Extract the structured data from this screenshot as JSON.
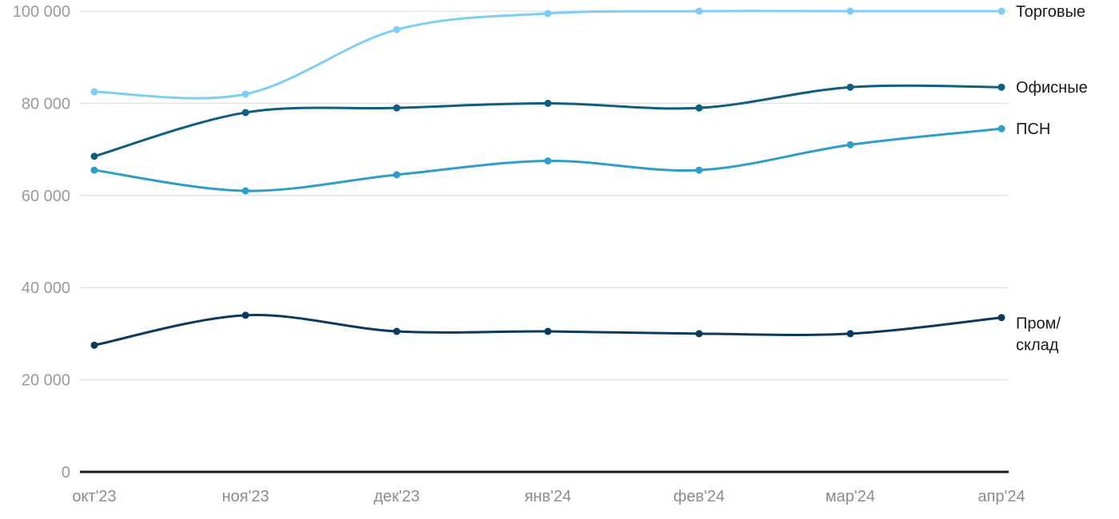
{
  "chart_data": {
    "type": "line",
    "title": "",
    "xlabel": "",
    "ylabel": "",
    "x": [
      "окт'23",
      "ноя'23",
      "дек'23",
      "янв'24",
      "фев'24",
      "мар'24",
      "апр'24"
    ],
    "y_ticks": [
      0,
      20000,
      40000,
      60000,
      80000,
      100000
    ],
    "y_tick_labels": [
      "0",
      "20 000",
      "40 000",
      "60 000",
      "80 000",
      "100 000"
    ],
    "ylim": [
      0,
      100000
    ],
    "grid": true,
    "legend_position": "right-of-last-point",
    "series": [
      {
        "name": "Торговые",
        "color": "#7dcef4",
        "values": [
          82500,
          82000,
          96000,
          99500,
          100000,
          100000,
          100000
        ],
        "label_lines": [
          "Торговые"
        ]
      },
      {
        "name": "Офисные",
        "color": "#0e5f7e",
        "values": [
          68500,
          78000,
          79000,
          80000,
          79000,
          83500,
          83500
        ],
        "label_lines": [
          "Офисные"
        ]
      },
      {
        "name": "ПСН",
        "color": "#2e9ec9",
        "values": [
          65500,
          61000,
          64500,
          67500,
          65500,
          71000,
          74500
        ],
        "label_lines": [
          "ПСН"
        ]
      },
      {
        "name": "Пром/склад",
        "color": "#0b3a5c",
        "values": [
          27500,
          34000,
          30500,
          30500,
          30000,
          30000,
          33500
        ],
        "label_lines": [
          "Пром/",
          "склад"
        ]
      }
    ]
  },
  "colors": {
    "background": "#ffffff",
    "grid": "#e3e3e3",
    "axis": "#1a1a1a",
    "tick_text": "#9a9a9a",
    "xtick_text": "#8c8c8c",
    "label_text": "#1a1a1a"
  }
}
